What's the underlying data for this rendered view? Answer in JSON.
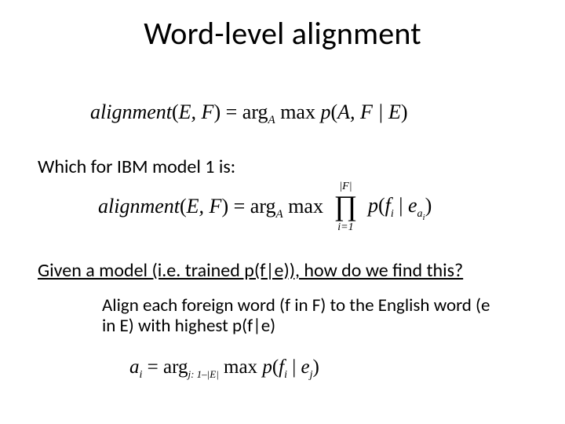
{
  "title": "Word-level alignment",
  "body": {
    "line1": "Which for IBM model 1 is:",
    "line2": "Given a model (i.e. trained p(f|e)), how do we find this?",
    "line3": "Align each foreign word (f in F) to the English word (e in E) with highest p(f|e)"
  },
  "eq1": {
    "text_lhs": "alignment",
    "args": "E, F",
    "eq": " = ",
    "arg_op": "arg",
    "arg_sub": "A",
    "sp": " ",
    "max": "max ",
    "p": "p",
    "pargs": "A, F | E"
  },
  "eq2": {
    "text_lhs": "alignment",
    "args": "E, F",
    "eq": " = ",
    "arg_op": "arg",
    "arg_sub": "A",
    "max": " max",
    "upper": "|F|",
    "prod": "∏",
    "lower": "i=1",
    "p": "p",
    "open": "(",
    "f": "f",
    "i": "i",
    "bar": " | ",
    "e": "e",
    "a": "a",
    "ai": "i",
    "close": ")"
  },
  "eq3": {
    "a": "a",
    "i": "i",
    "eq": " = ",
    "arg_op": "arg",
    "arg_sub": "j: 1–|E|",
    "sp": " ",
    "max": "max ",
    "p": "p",
    "open": "(",
    "f": "f",
    "fi": "i",
    "bar": " | ",
    "e": "e",
    "ej": "j",
    "close": ")"
  },
  "style": {
    "background": "#ffffff",
    "text_color": "#000000",
    "title_fontsize": 40,
    "body_fontsize": 24,
    "eq_fontfamily": "Times New Roman",
    "body_fontfamily": "Calibri"
  }
}
